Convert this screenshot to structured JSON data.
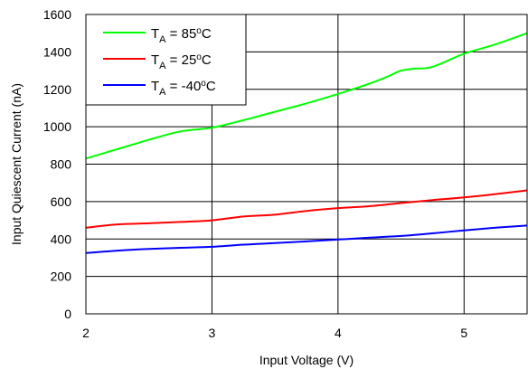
{
  "chart_data": {
    "type": "line",
    "title": "",
    "xlabel": "Input Voltage (V)",
    "ylabel": "Input Quiescent Current (nA)",
    "xlim": [
      2,
      5.5
    ],
    "ylim": [
      0,
      1600
    ],
    "x_ticks": [
      2,
      3,
      4,
      5
    ],
    "y_ticks": [
      0,
      200,
      400,
      600,
      800,
      1000,
      1200,
      1400,
      1600
    ],
    "grid": true,
    "legend_position": "top-left",
    "series": [
      {
        "legend": {
          "prefix": "T",
          "subscript": "A",
          "mid": " = 85",
          "sup": "o",
          "suffix": "C"
        },
        "color": "#00ff00",
        "x": [
          2.0,
          2.25,
          2.5,
          2.75,
          3.0,
          3.25,
          3.5,
          3.75,
          4.0,
          4.25,
          4.4,
          4.5,
          4.6,
          4.75,
          5.0,
          5.25,
          5.5
        ],
        "y": [
          830,
          880,
          930,
          975,
          995,
          1035,
          1080,
          1125,
          1175,
          1230,
          1270,
          1300,
          1310,
          1320,
          1390,
          1440,
          1500
        ]
      },
      {
        "legend": {
          "prefix": "T",
          "subscript": "A",
          "mid": " = 25",
          "sup": "o",
          "suffix": "C"
        },
        "color": "#ff0000",
        "x": [
          2.0,
          2.25,
          2.5,
          2.75,
          3.0,
          3.25,
          3.5,
          3.75,
          4.0,
          4.25,
          4.5,
          4.75,
          5.0,
          5.25,
          5.5
        ],
        "y": [
          460,
          478,
          484,
          491,
          500,
          520,
          530,
          550,
          565,
          575,
          592,
          608,
          622,
          640,
          660
        ]
      },
      {
        "legend": {
          "prefix": "T",
          "subscript": "A",
          "mid": " = -40",
          "sup": "o",
          "suffix": "C"
        },
        "color": "#0000ff",
        "x": [
          2.0,
          2.25,
          2.5,
          2.75,
          3.0,
          3.25,
          3.5,
          3.75,
          4.0,
          4.25,
          4.5,
          4.75,
          5.0,
          5.25,
          5.5
        ],
        "y": [
          325,
          338,
          347,
          353,
          358,
          370,
          378,
          387,
          397,
          407,
          416,
          430,
          446,
          460,
          472
        ]
      }
    ]
  }
}
